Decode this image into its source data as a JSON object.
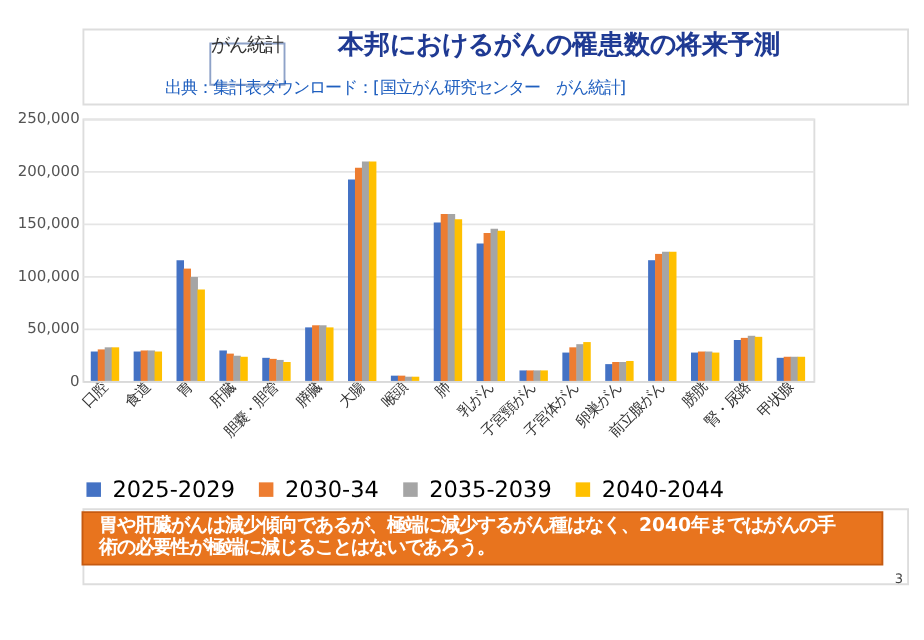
{
  "chart_data": {
    "type": "bar",
    "title": "本邦におけるがんの罹患数の将来予測",
    "categories": [
      "口腔",
      "食道",
      "胃",
      "肝臓",
      "胆嚢・胆管",
      "膵臓",
      "大腸",
      "喉頭",
      "肺",
      "乳がん",
      "子宮頸がん",
      "子宮体がん",
      "卵巣がん",
      "前立腺がん",
      "膀胱",
      "腎・尿路",
      "甲状腺"
    ],
    "series": [
      {
        "name": "2025-2029",
        "color": "#4472c4",
        "values": [
          28000,
          28000,
          115000,
          29000,
          22000,
          51000,
          192000,
          5000,
          151000,
          131000,
          10000,
          27000,
          16000,
          115000,
          27000,
          39000,
          22000
        ]
      },
      {
        "name": "2030-34",
        "color": "#ed7d31",
        "values": [
          30000,
          29000,
          107000,
          26000,
          21000,
          53000,
          203000,
          5000,
          159000,
          141000,
          10000,
          32000,
          18000,
          121000,
          28000,
          41000,
          23000
        ]
      },
      {
        "name": "2035-2039",
        "color": "#a5a5a5",
        "values": [
          32000,
          29000,
          99000,
          24000,
          20000,
          53000,
          209000,
          4000,
          159000,
          145000,
          10000,
          35000,
          18000,
          123000,
          28000,
          43000,
          23000
        ]
      },
      {
        "name": "2040-2044",
        "color": "#ffc000",
        "values": [
          32000,
          28000,
          87000,
          23000,
          18000,
          51000,
          209000,
          4000,
          154000,
          143000,
          10000,
          37000,
          19000,
          123000,
          27000,
          42000,
          23000
        ]
      }
    ],
    "ylim": [
      0,
      250000
    ],
    "yticks": [
      {
        "value": 0,
        "label": "0"
      },
      {
        "value": 50000,
        "label": "50,000"
      },
      {
        "value": 100000,
        "label": "100,000"
      },
      {
        "value": 150000,
        "label": "150,000"
      },
      {
        "value": 200000,
        "label": "200,000"
      },
      {
        "value": 250000,
        "label": "250,000"
      }
    ],
    "grid": "y",
    "legend": "bottom",
    "annotations": [
      "がん統計",
      "出典：集計表ダウンロード：[国立がん研究センター　がん統計]",
      "胃や肝臓がんは減少傾向であるが、極端に減少するがん種はなく、2040年まではがんの手術の必要性が極端に減じることはないであろう。",
      "3"
    ]
  }
}
